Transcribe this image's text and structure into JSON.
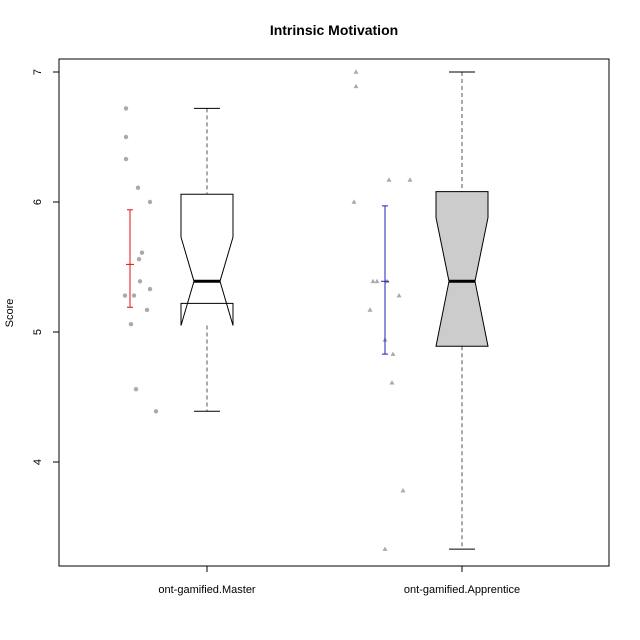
{
  "chart_data": {
    "type": "boxplot",
    "title": "Intrinsic Motivation",
    "xlabel": "",
    "ylabel": "Score",
    "ylim": [
      3.2,
      7.1
    ],
    "yticks": [
      "4",
      "5",
      "6",
      "7"
    ],
    "categories": [
      "ont-gamified.Master",
      "ont-gamified.Apprentice"
    ],
    "series": [
      {
        "box": {
          "min": 4.39,
          "q1": 5.22,
          "median": 5.39,
          "q3": 6.06,
          "max": 6.72,
          "notch_low": 5.05,
          "notch_high": 5.73
        },
        "box_fill": "#ffffff",
        "mean": 5.52,
        "ci": [
          5.19,
          5.94
        ],
        "ci_color": "#e01010",
        "points_marker": "circle",
        "points": [
          6.72,
          6.5,
          6.33,
          6.11,
          6.0,
          5.61,
          5.56,
          5.39,
          5.33,
          5.28,
          5.28,
          5.17,
          5.06,
          4.56,
          4.39
        ]
      },
      {
        "box": {
          "min": 3.33,
          "q1": 4.89,
          "median": 5.39,
          "q3": 6.08,
          "max": 7.0,
          "notch_low": 4.89,
          "notch_high": 5.88
        },
        "box_fill": "#cccccc",
        "mean": 5.39,
        "ci": [
          4.83,
          5.97
        ],
        "ci_color": "#2020b0",
        "points_marker": "triangle",
        "points": [
          7.0,
          6.89,
          6.17,
          6.17,
          6.0,
          5.39,
          5.39,
          5.39,
          5.28,
          5.17,
          4.94,
          4.83,
          4.61,
          3.78,
          3.33
        ]
      }
    ],
    "grid": false,
    "colors": {
      "points": "#aaaaaa",
      "whisker": "#555555"
    }
  }
}
